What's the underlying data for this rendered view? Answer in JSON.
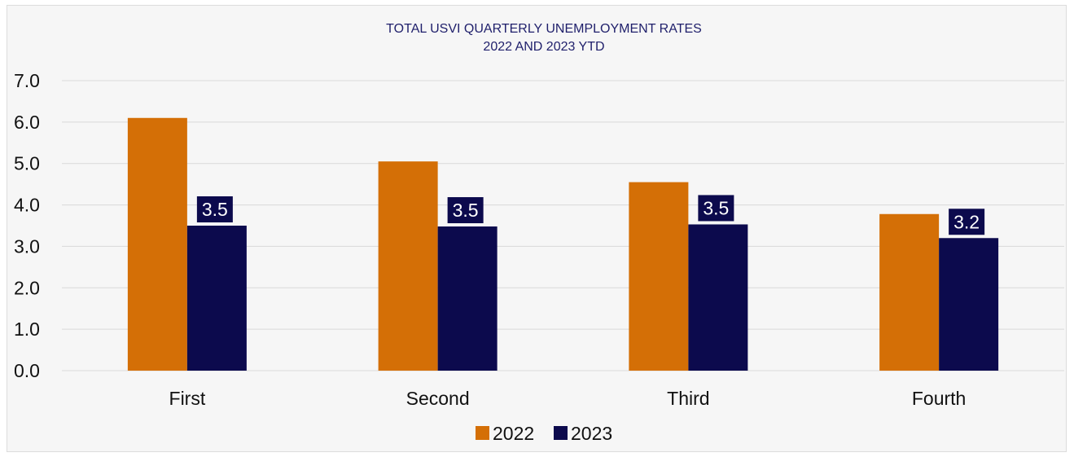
{
  "chart_data": {
    "type": "bar",
    "title": "TOTAL USVI QUARTERLY UNEMPLOYMENT RATES",
    "subtitle": "2022 AND 2023 YTD",
    "categories": [
      "First",
      "Second",
      "Third",
      "Fourth"
    ],
    "series": [
      {
        "name": "2022",
        "color": "#d46f06",
        "values": [
          6.1,
          5.05,
          4.55,
          3.78
        ]
      },
      {
        "name": "2023",
        "color": "#0c0a4d",
        "values": [
          3.5,
          3.48,
          3.53,
          3.2
        ]
      }
    ],
    "data_labels": {
      "2023": [
        "3.5",
        "3.5",
        "3.5",
        "3.2"
      ]
    },
    "ylim": [
      0,
      7
    ],
    "yticks": [
      "0.0",
      "1.0",
      "2.0",
      "3.0",
      "4.0",
      "5.0",
      "6.0",
      "7.0"
    ],
    "xlabel": "",
    "ylabel": "",
    "grid": true,
    "legend_position": "bottom-center"
  }
}
